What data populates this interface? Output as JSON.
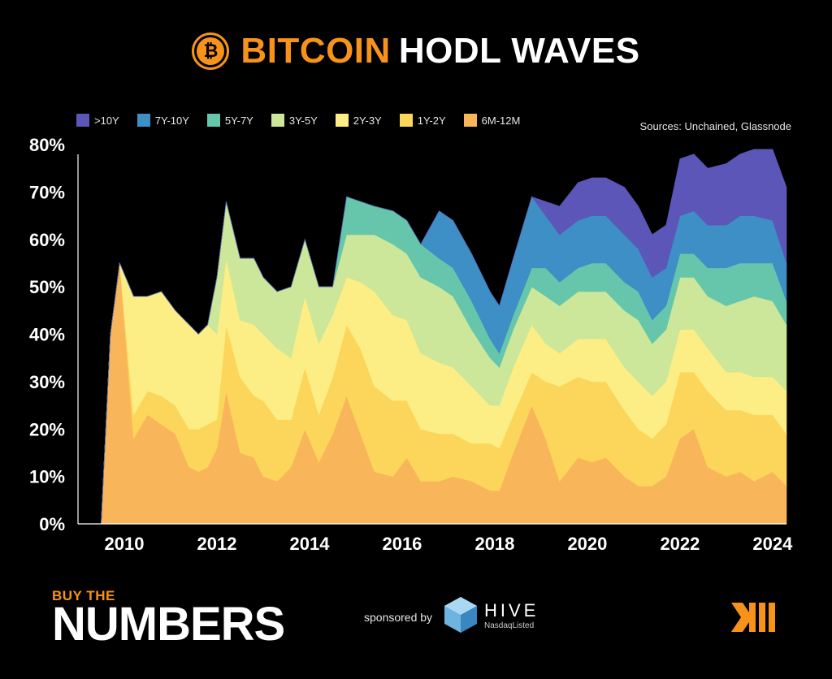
{
  "header": {
    "title_orange": "BITCOIN",
    "title_white": "HODL WAVES",
    "logo_symbol": "₿"
  },
  "sources": "Sources: Unchained, Glassnode",
  "footer": {
    "brand_small": "BUY THE",
    "brand_big": "NUMBERS",
    "sponsored_text": "sponsored by",
    "sponsor_name": "HIVE",
    "sponsor_sub": "NasdaqListed"
  },
  "colors": {
    "background": "#000000",
    "accent": "#f7931a"
  },
  "chart_data": {
    "type": "area",
    "stacked": true,
    "title": "BITCOIN HODL WAVES",
    "xlabel": "",
    "ylabel": "",
    "ylim": [
      0,
      80
    ],
    "xlim": [
      2009.0,
      2024.3
    ],
    "x_ticks": [
      2010,
      2012,
      2014,
      2016,
      2018,
      2020,
      2022,
      2024
    ],
    "x_tick_labels": [
      "2010",
      "2012",
      "2014",
      "2016",
      "2018",
      "2020",
      "2022",
      "2024"
    ],
    "y_ticks": [
      0,
      10,
      20,
      30,
      40,
      50,
      60,
      70,
      80
    ],
    "y_tick_labels": [
      "0%",
      "10%",
      "20%",
      "30%",
      "40%",
      "50%",
      "60%",
      "70%",
      "80%"
    ],
    "legend_position": "top-left",
    "grid": false,
    "x": [
      2009.5,
      2009.7,
      2009.9,
      2010.2,
      2010.5,
      2010.8,
      2011.1,
      2011.4,
      2011.6,
      2011.8,
      2012.0,
      2012.2,
      2012.5,
      2012.8,
      2013.0,
      2013.3,
      2013.6,
      2013.9,
      2014.2,
      2014.5,
      2014.8,
      2015.1,
      2015.4,
      2015.8,
      2016.1,
      2016.4,
      2016.8,
      2017.1,
      2017.5,
      2017.9,
      2018.1,
      2018.4,
      2018.8,
      2019.1,
      2019.4,
      2019.8,
      2020.1,
      2020.4,
      2020.8,
      2021.1,
      2021.4,
      2021.7,
      2022.0,
      2022.3,
      2022.6,
      2023.0,
      2023.3,
      2023.6,
      2024.0,
      2024.3
    ],
    "series": [
      {
        "name": "6M-12M",
        "color": "#f9b55a",
        "values": [
          0,
          40,
          55,
          18,
          23,
          21,
          19,
          12,
          11,
          12,
          16,
          28,
          15,
          14,
          10,
          9,
          12,
          20,
          13,
          19,
          27,
          19,
          11,
          10,
          14,
          9,
          9,
          10,
          9,
          7,
          7,
          15,
          25,
          18,
          9,
          14,
          13,
          14,
          10,
          8,
          8,
          10,
          18,
          20,
          12,
          10,
          11,
          9,
          11,
          8
        ]
      },
      {
        "name": "1Y-2Y",
        "color": "#fbd65b",
        "values": [
          0,
          0,
          0,
          5,
          5,
          6,
          6,
          8,
          9,
          9,
          6,
          14,
          16,
          13,
          16,
          13,
          10,
          13,
          10,
          12,
          15,
          18,
          18,
          16,
          12,
          11,
          10,
          9,
          8,
          10,
          9,
          8,
          7,
          12,
          20,
          17,
          17,
          16,
          14,
          12,
          10,
          11,
          14,
          12,
          16,
          14,
          13,
          14,
          12,
          11
        ]
      },
      {
        "name": "2Y-3Y",
        "color": "#fcee84",
        "values": [
          0,
          0,
          0,
          25,
          20,
          22,
          20,
          22,
          20,
          21,
          18,
          14,
          12,
          15,
          14,
          15,
          13,
          15,
          15,
          13,
          10,
          14,
          20,
          18,
          17,
          16,
          15,
          14,
          12,
          8,
          9,
          10,
          10,
          8,
          7,
          8,
          9,
          9,
          9,
          10,
          9,
          9,
          9,
          9,
          9,
          8,
          8,
          8,
          8,
          9
        ]
      },
      {
        "name": "3Y-5Y",
        "color": "#cde79a",
        "values": [
          0,
          0,
          0,
          0,
          0,
          0,
          0,
          0,
          0,
          0,
          12,
          12,
          13,
          14,
          12,
          12,
          15,
          12,
          12,
          6,
          9,
          10,
          12,
          15,
          14,
          16,
          16,
          15,
          12,
          10,
          8,
          8,
          8,
          10,
          10,
          10,
          10,
          10,
          12,
          13,
          11,
          11,
          11,
          11,
          11,
          14,
          15,
          17,
          16,
          14
        ]
      },
      {
        "name": "5Y-7Y",
        "color": "#66c6ab",
        "values": [
          0,
          0,
          0,
          0,
          0,
          0,
          0,
          0,
          0,
          0,
          0,
          0,
          0,
          0,
          0,
          0,
          0,
          0,
          0,
          0,
          8,
          7,
          6,
          7,
          7,
          7,
          6,
          6,
          6,
          4,
          3,
          3,
          4,
          6,
          5,
          5,
          6,
          6,
          6,
          6,
          5,
          5,
          5,
          5,
          6,
          8,
          8,
          7,
          8,
          5
        ]
      },
      {
        "name": "7Y-10Y",
        "color": "#3e8fc6",
        "values": [
          0,
          0,
          0,
          0,
          0,
          0,
          0,
          0,
          0,
          0,
          0,
          0,
          0,
          0,
          0,
          0,
          0,
          0,
          0,
          0,
          0,
          0,
          0,
          0,
          0,
          0,
          10,
          10,
          10,
          10,
          10,
          12,
          15,
          11,
          10,
          10,
          10,
          10,
          10,
          9,
          9,
          8,
          8,
          9,
          9,
          9,
          10,
          10,
          9,
          8
        ]
      },
      {
        "name": ">10Y",
        "color": "#5c56b8",
        "values": [
          0,
          0,
          0,
          0,
          0,
          0,
          0,
          0,
          0,
          0,
          0,
          0,
          0,
          0,
          0,
          0,
          0,
          0,
          0,
          0,
          0,
          0,
          0,
          0,
          0,
          0,
          0,
          0,
          0,
          0,
          0,
          0,
          0,
          3,
          6,
          8,
          8,
          8,
          10,
          9,
          9,
          9,
          12,
          12,
          12,
          13,
          13,
          14,
          15,
          16
        ]
      }
    ]
  }
}
